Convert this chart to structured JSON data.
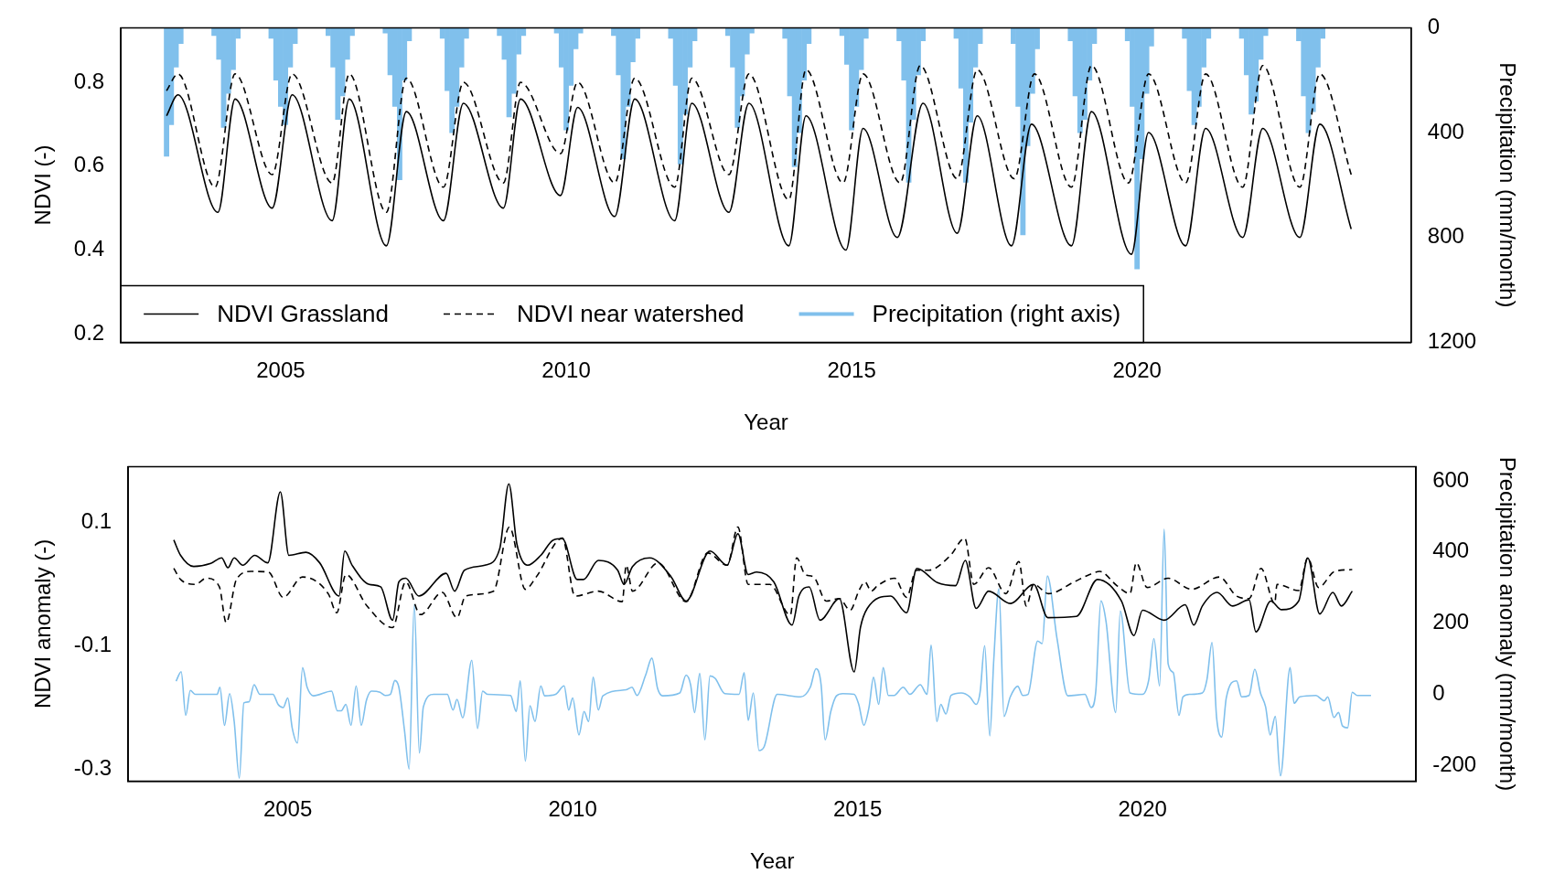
{
  "chart_data": [
    {
      "type": "line",
      "xlabel": "Year",
      "ylabel": "NDVI (-)",
      "y2label": "Precipitation (mm/month)",
      "xlim": [
        2002.2,
        2024.8
      ],
      "xticks": [
        2005,
        2010,
        2015,
        2020
      ],
      "ylim": [
        0.18,
        0.93
      ],
      "yticks": [
        0.2,
        0.4,
        0.6,
        0.8
      ],
      "y2lim": [
        1200,
        0
      ],
      "y2ticks": [
        0,
        400,
        800,
        1200
      ],
      "grid": false,
      "legend": "bottom left",
      "marker": "none",
      "series": [
        {
          "name": "NDVI Grassland",
          "color": "#000000",
          "line_style": "solid",
          "x": [
            2003.0,
            2003.2,
            2003.9,
            2004.2,
            2004.85,
            2005.2,
            2005.9,
            2006.2,
            2006.85,
            2007.2,
            2007.85,
            2008.2,
            2008.9,
            2009.2,
            2009.9,
            2010.2,
            2010.85,
            2011.2,
            2011.9,
            2012.2,
            2012.85,
            2013.2,
            2013.9,
            2014.2,
            2014.9,
            2015.2,
            2015.8,
            2016.25,
            2016.85,
            2017.2,
            2017.8,
            2018.15,
            2018.85,
            2019.2,
            2019.9,
            2020.2,
            2020.85,
            2021.2,
            2021.85,
            2022.2,
            2022.85,
            2023.2,
            2023.75
          ],
          "values": [
            0.72,
            0.77,
            0.49,
            0.76,
            0.5,
            0.77,
            0.47,
            0.76,
            0.41,
            0.73,
            0.47,
            0.75,
            0.5,
            0.76,
            0.53,
            0.74,
            0.48,
            0.76,
            0.47,
            0.75,
            0.49,
            0.75,
            0.41,
            0.72,
            0.4,
            0.69,
            0.43,
            0.75,
            0.44,
            0.72,
            0.41,
            0.7,
            0.41,
            0.73,
            0.39,
            0.68,
            0.41,
            0.69,
            0.43,
            0.69,
            0.43,
            0.7,
            0.45
          ]
        },
        {
          "name": "NDVI near watershed",
          "color": "#000000",
          "line_style": "dashed",
          "x": [
            2003.0,
            2003.2,
            2003.85,
            2004.2,
            2004.85,
            2005.2,
            2005.9,
            2006.2,
            2006.85,
            2007.2,
            2007.85,
            2008.2,
            2008.9,
            2009.2,
            2009.9,
            2010.2,
            2010.85,
            2011.2,
            2011.9,
            2012.2,
            2012.85,
            2013.2,
            2013.9,
            2014.2,
            2014.85,
            2015.2,
            2015.85,
            2016.2,
            2016.85,
            2017.2,
            2017.85,
            2018.2,
            2018.85,
            2019.2,
            2019.85,
            2020.2,
            2020.85,
            2021.2,
            2021.85,
            2022.2,
            2022.85,
            2023.2,
            2023.75
          ],
          "values": [
            0.78,
            0.82,
            0.55,
            0.82,
            0.58,
            0.82,
            0.56,
            0.82,
            0.49,
            0.81,
            0.55,
            0.8,
            0.56,
            0.8,
            0.63,
            0.8,
            0.56,
            0.81,
            0.55,
            0.81,
            0.58,
            0.82,
            0.52,
            0.83,
            0.56,
            0.82,
            0.56,
            0.84,
            0.57,
            0.83,
            0.57,
            0.82,
            0.55,
            0.84,
            0.56,
            0.82,
            0.56,
            0.82,
            0.55,
            0.84,
            0.55,
            0.82,
            0.58
          ]
        },
        {
          "name": "Precipitation (right axis)",
          "type": "bar",
          "axis": "y2",
          "color": "#80c0ec",
          "x": [
            2003.0,
            2003.083,
            2003.167,
            2003.25,
            2003.833,
            2003.917,
            2004.0,
            2004.083,
            2004.167,
            2004.25,
            2004.833,
            2004.917,
            2005.0,
            2005.083,
            2005.167,
            2005.25,
            2005.833,
            2005.917,
            2006.0,
            2006.083,
            2006.167,
            2006.25,
            2006.833,
            2006.917,
            2007.0,
            2007.083,
            2007.167,
            2007.25,
            2007.833,
            2007.917,
            2008.0,
            2008.083,
            2008.167,
            2008.25,
            2008.833,
            2008.917,
            2009.0,
            2009.083,
            2009.167,
            2009.25,
            2009.833,
            2009.917,
            2010.0,
            2010.083,
            2010.167,
            2010.25,
            2010.833,
            2010.917,
            2011.0,
            2011.083,
            2011.167,
            2011.25,
            2011.833,
            2011.917,
            2012.0,
            2012.083,
            2012.167,
            2012.25,
            2012.833,
            2012.917,
            2013.0,
            2013.083,
            2013.167,
            2013.25,
            2013.833,
            2013.917,
            2014.0,
            2014.083,
            2014.167,
            2014.25,
            2014.833,
            2014.917,
            2015.0,
            2015.083,
            2015.167,
            2015.25,
            2015.833,
            2015.917,
            2016.0,
            2016.083,
            2016.167,
            2016.25,
            2016.833,
            2016.917,
            2017.0,
            2017.083,
            2017.167,
            2017.25,
            2017.833,
            2017.917,
            2018.0,
            2018.083,
            2018.167,
            2018.25,
            2018.833,
            2018.917,
            2019.0,
            2019.083,
            2019.167,
            2019.25,
            2019.833,
            2019.917,
            2020.0,
            2020.083,
            2020.167,
            2020.25,
            2020.833,
            2020.917,
            2021.0,
            2021.083,
            2021.167,
            2021.25,
            2021.833,
            2021.917,
            2022.0,
            2022.083,
            2022.167,
            2022.25,
            2022.833,
            2022.917,
            2023.0,
            2023.083,
            2023.167,
            2023.25
          ],
          "values": [
            490,
            370,
            150,
            60,
            30,
            120,
            380,
            250,
            160,
            40,
            40,
            200,
            300,
            370,
            150,
            60,
            30,
            150,
            350,
            260,
            120,
            30,
            20,
            180,
            300,
            580,
            200,
            50,
            40,
            240,
            400,
            300,
            150,
            40,
            30,
            120,
            340,
            250,
            100,
            30,
            20,
            150,
            390,
            220,
            80,
            20,
            30,
            180,
            500,
            300,
            130,
            40,
            40,
            220,
            520,
            330,
            150,
            50,
            30,
            150,
            380,
            260,
            100,
            20,
            40,
            260,
            530,
            400,
            200,
            60,
            30,
            140,
            390,
            300,
            160,
            40,
            50,
            200,
            590,
            350,
            180,
            50,
            40,
            230,
            590,
            360,
            150,
            60,
            60,
            300,
            790,
            450,
            250,
            80,
            50,
            260,
            400,
            350,
            200,
            60,
            50,
            300,
            920,
            500,
            250,
            70,
            40,
            240,
            370,
            300,
            150,
            40,
            40,
            180,
            330,
            280,
            120,
            30,
            50,
            260,
            400,
            320,
            150,
            40
          ]
        }
      ]
    },
    {
      "type": "line",
      "xlabel": "Year",
      "ylabel": "NDVI anomaly (-)",
      "y2label": "Precipitation anomaly (mm/month)",
      "xlim": [
        2002.2,
        2024.8
      ],
      "xticks": [
        2005,
        2010,
        2015,
        2020
      ],
      "ylim": [
        -0.32,
        0.19
      ],
      "yticks": [
        -0.3,
        -0.1,
        0.1
      ],
      "y2lim": [
        -245,
        640
      ],
      "y2ticks": [
        -200,
        0,
        200,
        400,
        600
      ],
      "grid": false,
      "marker": "none",
      "series": [
        {
          "color": "#000000",
          "line_style": "solid",
          "x": [
            2003.0,
            2003.12,
            2003.35,
            2003.65,
            2003.84,
            2003.95,
            2004.06,
            2004.21,
            2004.42,
            2004.65,
            2004.87,
            2005.02,
            2005.32,
            2005.56,
            2005.9,
            2006.0,
            2006.13,
            2006.43,
            2006.63,
            2006.84,
            2006.95,
            2007.07,
            2007.3,
            2007.78,
            2007.93,
            2008.1,
            2008.46,
            2008.72,
            2008.88,
            2009.02,
            2009.21,
            2009.44,
            2009.66,
            2009.82,
            2010.08,
            2010.19,
            2010.45,
            2010.79,
            2010.9,
            2011.05,
            2011.35,
            2011.73,
            2011.99,
            2012.41,
            2012.71,
            2012.9,
            2013.08,
            2013.23,
            2013.53,
            2013.85,
            2013.97,
            2014.15,
            2014.34,
            2014.68,
            2014.94,
            2015.05,
            2015.17,
            2015.58,
            2015.86,
            2016.04,
            2016.4,
            2016.72,
            2016.89,
            2017.08,
            2017.3,
            2017.68,
            2018.09,
            2018.34,
            2018.84,
            2019.21,
            2019.63,
            2019.85,
            2020.0,
            2020.38,
            2020.75,
            2020.9,
            2021.05,
            2021.31,
            2021.58,
            2021.87,
            2021.99,
            2022.25,
            2022.44,
            2022.74,
            2022.9,
            2023.11,
            2023.34,
            2023.49,
            2023.68
          ],
          "values": [
            0.071,
            0.046,
            0.028,
            0.033,
            0.042,
            0.026,
            0.042,
            0.03,
            0.046,
            0.034,
            0.149,
            0.046,
            0.051,
            0.034,
            -0.02,
            0.053,
            0.03,
            -0.001,
            -0.005,
            -0.059,
            0.003,
            0.009,
            -0.02,
            0.017,
            -0.012,
            0.022,
            0.03,
            0.057,
            0.162,
            0.065,
            0.03,
            0.046,
            0.071,
            0.073,
            0.007,
            0.007,
            0.038,
            0.022,
            -0.001,
            0.028,
            0.042,
            0.011,
            -0.028,
            0.053,
            0.03,
            0.081,
            0.015,
            0.019,
            0.003,
            -0.067,
            -0.02,
            -0.005,
            -0.059,
            -0.024,
            -0.143,
            -0.071,
            -0.04,
            -0.02,
            -0.047,
            0.025,
            0.002,
            -0.003,
            0.038,
            -0.04,
            -0.012,
            -0.032,
            -0.001,
            -0.055,
            -0.053,
            0.007,
            -0.028,
            -0.084,
            -0.043,
            -0.059,
            -0.034,
            -0.067,
            -0.036,
            -0.014,
            -0.036,
            -0.026,
            -0.078,
            -0.028,
            -0.042,
            -0.028,
            0.042,
            -0.049,
            -0.014,
            -0.036,
            -0.012
          ]
        },
        {
          "color": "#000000",
          "line_style": "dashed",
          "x": [
            2003.0,
            2003.12,
            2003.38,
            2003.57,
            2003.8,
            2003.92,
            2004.1,
            2004.36,
            2004.66,
            2004.92,
            2005.26,
            2005.71,
            2005.86,
            2006.02,
            2006.39,
            2006.84,
            2007.07,
            2007.33,
            2007.71,
            2007.97,
            2008.12,
            2008.61,
            2008.89,
            2009.17,
            2009.36,
            2009.82,
            2010.04,
            2010.45,
            2010.87,
            2010.94,
            2011.05,
            2011.5,
            2011.99,
            2012.37,
            2012.71,
            2012.9,
            2013.08,
            2013.46,
            2013.82,
            2013.93,
            2014.08,
            2014.23,
            2014.45,
            2014.68,
            2014.87,
            2015.02,
            2015.13,
            2015.24,
            2015.35,
            2015.65,
            2015.86,
            2016.03,
            2016.25,
            2016.63,
            2016.88,
            2017.04,
            2017.3,
            2017.6,
            2017.83,
            2017.96,
            2018.09,
            2018.35,
            2018.8,
            2019.07,
            2019.25,
            2019.55,
            2019.78,
            2019.89,
            2020.08,
            2020.45,
            2020.86,
            2021.35,
            2021.65,
            2021.87,
            2022.08,
            2022.32,
            2022.36,
            2022.74,
            2022.9,
            2023.09,
            2023.37,
            2023.68
          ],
          "values": [
            0.025,
            0.007,
            -0.001,
            0.009,
            -0.005,
            -0.063,
            0.007,
            0.02,
            0.019,
            -0.022,
            0.011,
            -0.016,
            -0.047,
            0.015,
            -0.036,
            -0.071,
            0.003,
            -0.05,
            -0.014,
            -0.055,
            -0.02,
            -0.012,
            0.092,
            -0.009,
            0.011,
            0.074,
            -0.02,
            -0.012,
            -0.029,
            0.03,
            -0.012,
            0.034,
            -0.029,
            0.05,
            0.03,
            0.092,
            -0.001,
            -0.001,
            -0.051,
            0.042,
            0.015,
            0.011,
            -0.028,
            -0.024,
            -0.043,
            -0.012,
            0.003,
            -0.012,
            -0.003,
            0.009,
            -0.022,
            0.022,
            0.022,
            0.046,
            0.074,
            -0.001,
            0.026,
            -0.016,
            0.036,
            -0.036,
            -0.001,
            -0.016,
            0.003,
            0.015,
            0.02,
            -0.003,
            -0.016,
            0.034,
            -0.006,
            0.009,
            -0.009,
            0.011,
            -0.02,
            -0.024,
            0.025,
            -0.032,
            -0.001,
            -0.011,
            0.042,
            -0.006,
            0.02,
            0.023
          ]
        },
        {
          "color": "#80c0ec",
          "line_style": "solid",
          "axis": "y2",
          "x": [
            2003.04,
            2003.13,
            2003.21,
            2003.29,
            2003.38,
            2003.76,
            2003.81,
            2003.89,
            2003.98,
            2004.06,
            2004.15,
            2004.23,
            2004.32,
            2004.41,
            2004.51,
            2004.74,
            2004.83,
            2004.92,
            2005.0,
            2005.08,
            2005.17,
            2005.26,
            2005.34,
            2005.45,
            2005.77,
            2005.87,
            2005.94,
            2006.02,
            2006.11,
            2006.2,
            2006.29,
            2006.38,
            2006.47,
            2006.62,
            2006.71,
            2006.8,
            2006.88,
            2006.95,
            2007.05,
            2007.13,
            2007.22,
            2007.31,
            2007.38,
            2007.56,
            2007.8,
            2007.9,
            2007.97,
            2008.07,
            2008.23,
            2008.33,
            2008.42,
            2008.51,
            2008.91,
            2009.01,
            2009.08,
            2009.17,
            2009.25,
            2009.34,
            2009.44,
            2009.51,
            2009.7,
            2009.85,
            2009.93,
            2010.0,
            2010.11,
            2010.2,
            2010.28,
            2010.36,
            2010.45,
            2010.53,
            2010.94,
            2011.04,
            2011.13,
            2011.28,
            2011.39,
            2011.49,
            2011.58,
            2011.88,
            2011.99,
            2012.07,
            2012.14,
            2012.23,
            2012.32,
            2012.41,
            2012.5,
            2012.67,
            2012.92,
            2013.01,
            2013.08,
            2013.17,
            2013.27,
            2013.36,
            2013.59,
            2014.0,
            2014.17,
            2014.27,
            2014.36,
            2014.43,
            2014.53,
            2014.63,
            2014.74,
            2014.94,
            2015.02,
            2015.11,
            2015.2,
            2015.28,
            2015.37,
            2015.45,
            2015.54,
            2015.64,
            2015.8,
            2015.92,
            2016.1,
            2016.22,
            2016.29,
            2016.39,
            2016.46,
            2016.55,
            2016.64,
            2016.82,
            2016.97,
            2017.08,
            2017.15,
            2017.23,
            2017.32,
            2017.39,
            2017.48,
            2017.57,
            2017.68,
            2017.81,
            2017.9,
            2017.99,
            2018.16,
            2018.24,
            2018.33,
            2018.5,
            2018.69,
            2018.99,
            2019.1,
            2019.18,
            2019.27,
            2019.36,
            2019.53,
            2019.61,
            2019.78,
            2020.0,
            2020.11,
            2020.2,
            2020.3,
            2020.38,
            2020.45,
            2020.54,
            2020.64,
            2020.71,
            2020.83,
            2021.05,
            2021.13,
            2021.22,
            2021.3,
            2021.39,
            2021.47,
            2021.65,
            2021.74,
            2021.87,
            2021.97,
            2022.07,
            2022.16,
            2022.24,
            2022.33,
            2022.42,
            2022.59,
            2022.66,
            2022.76,
            2023.04,
            2023.19,
            2023.25,
            2023.36,
            2023.44,
            2023.51,
            2023.6,
            2023.68,
            2023.77,
            2024.01
          ],
          "values": [
            36,
            63,
            -60,
            10,
            -1,
            -1,
            19,
            -88,
            1,
            -77,
            -237,
            -25,
            -22,
            26,
            -1,
            -1,
            -29,
            -38,
            -11,
            -97,
            -138,
            74,
            19,
            -5,
            8,
            -47,
            -47,
            -29,
            -88,
            23,
            -88,
            -18,
            8,
            5,
            -4,
            -1,
            38,
            19,
            -104,
            -211,
            252,
            -166,
            -36,
            -1,
            -1,
            -45,
            -15,
            -67,
            95,
            -97,
            8,
            -1,
            -4,
            -49,
            37,
            -189,
            -33,
            -77,
            23,
            -5,
            -1,
            23,
            -45,
            -11,
            -115,
            -49,
            -77,
            47,
            -45,
            -5,
            12,
            19,
            -4,
            53,
            101,
            16,
            -5,
            3,
            53,
            26,
            -52,
            58,
            -129,
            51,
            44,
            1,
            -1,
            60,
            -74,
            3,
            -159,
            -148,
            -1,
            -8,
            19,
            71,
            26,
            -129,
            -49,
            -5,
            1,
            -1,
            -29,
            -88,
            -38,
            47,
            -29,
            74,
            -4,
            -4,
            19,
            -1,
            26,
            -1,
            138,
            -77,
            -29,
            -56,
            -4,
            3,
            -8,
            -29,
            5,
            136,
            -118,
            97,
            296,
            -63,
            -8,
            22,
            -4,
            -1,
            149,
            142,
            332,
            156,
            -5,
            -1,
            -38,
            8,
            262,
            204,
            -52,
            234,
            3,
            -1,
            40,
            156,
            23,
            464,
            85,
            60,
            -60,
            -8,
            -1,
            3,
            40,
            145,
            -66,
            -121,
            -11,
            37,
            -8,
            -4,
            70,
            3,
            -36,
            -115,
            -63,
            -230,
            74,
            -26,
            -8,
            -4,
            -19,
            -8,
            -66,
            -52,
            -90,
            -95,
            5,
            -4,
            -4
          ]
        }
      ]
    }
  ]
}
